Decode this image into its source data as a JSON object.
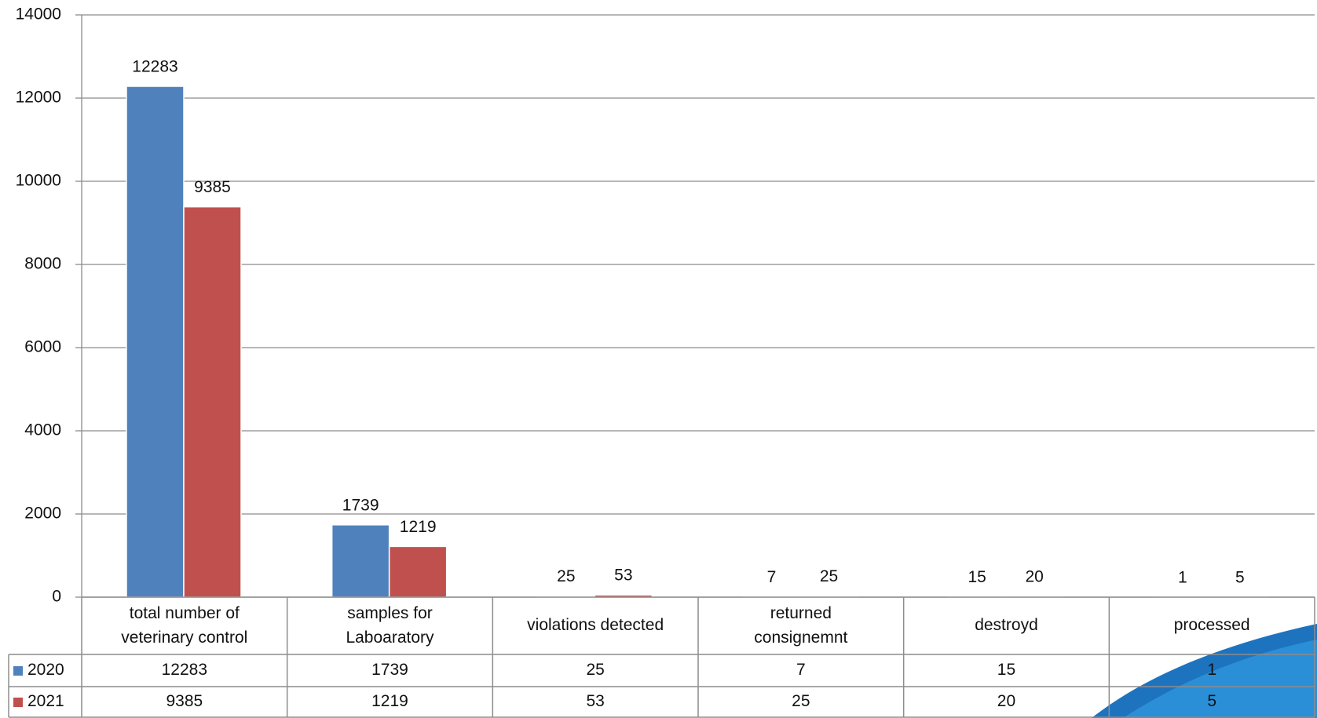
{
  "chart_data": {
    "type": "bar",
    "categories": [
      "total number of veterinary control",
      "samples for Laboaratory",
      "violations detected",
      "returned consignemnt",
      "destroyd",
      "processed"
    ],
    "series": [
      {
        "name": "2020",
        "color": "#4f81bd",
        "values": [
          12283,
          1739,
          25,
          7,
          15,
          1
        ]
      },
      {
        "name": "2021",
        "color": "#c0504d",
        "values": [
          9385,
          1219,
          53,
          25,
          20,
          5
        ]
      }
    ],
    "ylim": [
      0,
      14000
    ],
    "yticks": [
      0,
      2000,
      4000,
      6000,
      8000,
      10000,
      12000,
      14000
    ],
    "grid": true,
    "data_table": true
  }
}
